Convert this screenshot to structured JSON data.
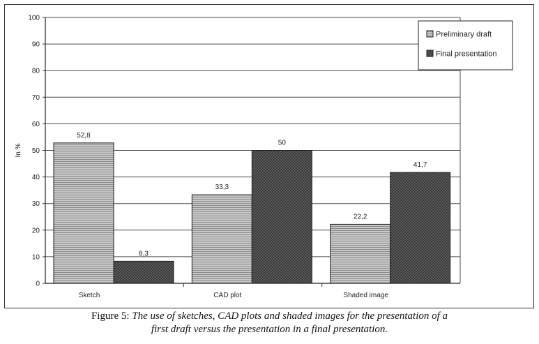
{
  "caption": {
    "lead": "Figure 5:",
    "line1": "The use of sketches, CAD plots and shaded images for the presentation of a",
    "line2": "first draft versus the presentation in a final presentation."
  },
  "chart_data": {
    "type": "bar",
    "ylabel": "In %",
    "xlabel": "",
    "ylim": [
      0,
      100
    ],
    "yticks": [
      0,
      10,
      20,
      30,
      40,
      50,
      60,
      70,
      80,
      90,
      100
    ],
    "grid": true,
    "legend_position": "top-right",
    "categories": [
      "Sketch",
      "CAD plot",
      "Shaded image"
    ],
    "series": [
      {
        "name": "Preliminary draft",
        "values": [
          52.8,
          33.3,
          22.2
        ],
        "labels": [
          "52,8",
          "33,3",
          "22,2"
        ],
        "color": "#b5b5b5"
      },
      {
        "name": "Final presentation",
        "values": [
          8.3,
          50,
          41.7
        ],
        "labels": [
          "8,3",
          "50",
          "41,7"
        ],
        "color": "#555555"
      }
    ]
  }
}
